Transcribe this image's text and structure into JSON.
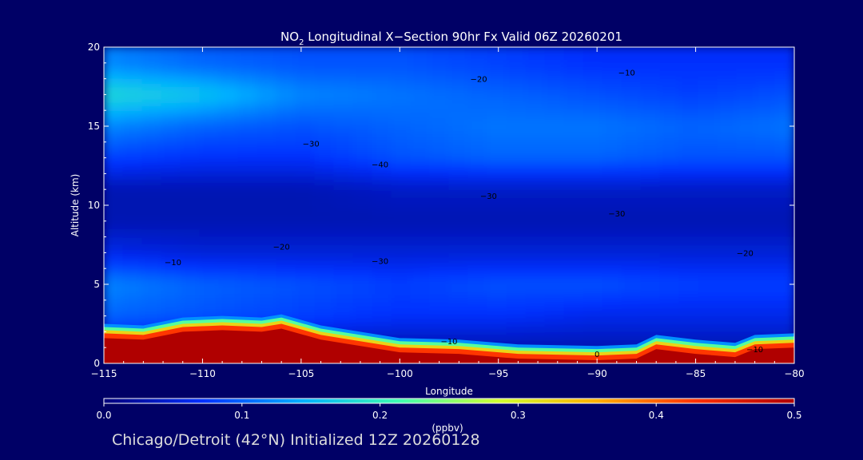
{
  "chart_data": {
    "type": "heatmap",
    "title": {
      "species": "NO",
      "subscript": "2",
      "rest": " Longitudinal X−Section 90hr  Fx Valid 06Z 20260201"
    },
    "xlabel": "Longitude",
    "ylabel": "Altitude (km)",
    "xlim": [
      -115,
      -80
    ],
    "ylim": [
      0,
      20
    ],
    "x_ticks": [
      -115,
      -110,
      -105,
      -100,
      -95,
      -90,
      -85,
      -80
    ],
    "x_tick_labels": [
      "−115",
      "−110",
      "−105",
      "−100",
      "−95",
      "−90",
      "−85",
      "−80"
    ],
    "y_ticks": [
      0,
      5,
      10,
      15,
      20
    ],
    "y_tick_labels": [
      "0",
      "5",
      "10",
      "15",
      "20"
    ],
    "colorbar": {
      "label": "(ppbv)",
      "range": [
        0.0,
        0.5
      ],
      "ticks": [
        0.0,
        0.1,
        0.2,
        0.3,
        0.4,
        0.5
      ],
      "tick_labels": [
        "0.0",
        "0.1",
        "0.2",
        "0.3",
        "0.4",
        "0.5"
      ],
      "colors": [
        "#00007a",
        "#0030ff",
        "#00b0ff",
        "#40ffb0",
        "#d0ff30",
        "#ffb000",
        "#ff3000",
        "#b00000"
      ]
    },
    "background_color": "#000066",
    "field_levels": [
      {
        "lon": -115,
        "values": [
          0.04,
          0.1,
          0.12,
          0.06,
          0.03,
          0.03,
          0.08,
          0.12,
          0.18,
          0.12
        ]
      },
      {
        "lon": -110,
        "values": [
          0.03,
          0.09,
          0.1,
          0.05,
          0.03,
          0.03,
          0.07,
          0.1,
          0.16,
          0.1
        ]
      },
      {
        "lon": -105,
        "values": [
          0.03,
          0.08,
          0.09,
          0.05,
          0.03,
          0.03,
          0.07,
          0.09,
          0.12,
          0.09
        ]
      },
      {
        "lon": -100,
        "values": [
          0.03,
          0.07,
          0.08,
          0.05,
          0.03,
          0.04,
          0.09,
          0.1,
          0.11,
          0.09
        ]
      },
      {
        "lon": -95,
        "values": [
          0.03,
          0.07,
          0.09,
          0.05,
          0.03,
          0.04,
          0.1,
          0.11,
          0.1,
          0.08
        ]
      },
      {
        "lon": -90,
        "values": [
          0.03,
          0.06,
          0.09,
          0.05,
          0.03,
          0.04,
          0.1,
          0.11,
          0.09,
          0.07
        ]
      },
      {
        "lon": -85,
        "values": [
          0.03,
          0.06,
          0.08,
          0.05,
          0.03,
          0.04,
          0.09,
          0.1,
          0.08,
          0.07
        ]
      },
      {
        "lon": -80,
        "values": [
          0.03,
          0.06,
          0.08,
          0.05,
          0.03,
          0.04,
          0.09,
          0.11,
          0.09,
          0.07
        ]
      }
    ],
    "surface_layer": {
      "max_ppbv": 0.5,
      "terrain_top_km": [
        {
          "lon": -115,
          "km": 1.6
        },
        {
          "lon": -113,
          "km": 1.5
        },
        {
          "lon": -111,
          "km": 2.0
        },
        {
          "lon": -109,
          "km": 2.1
        },
        {
          "lon": -107,
          "km": 2.0
        },
        {
          "lon": -106,
          "km": 2.2
        },
        {
          "lon": -104,
          "km": 1.5
        },
        {
          "lon": -100,
          "km": 0.7
        },
        {
          "lon": -97,
          "km": 0.6
        },
        {
          "lon": -94,
          "km": 0.3
        },
        {
          "lon": -90,
          "km": 0.2
        },
        {
          "lon": -88,
          "km": 0.3
        },
        {
          "lon": -87,
          "km": 0.9
        },
        {
          "lon": -85,
          "km": 0.6
        },
        {
          "lon": -83,
          "km": 0.4
        },
        {
          "lon": -82,
          "km": 0.9
        },
        {
          "lon": -80,
          "km": 1.0
        }
      ]
    },
    "contour_labels": [
      {
        "text": "−20",
        "lon": -96.0,
        "km": 17.8
      },
      {
        "text": "−10",
        "lon": -88.5,
        "km": 18.2
      },
      {
        "text": "−30",
        "lon": -104.5,
        "km": 13.7
      },
      {
        "text": "−40",
        "lon": -101.0,
        "km": 12.4
      },
      {
        "text": "−30",
        "lon": -95.5,
        "km": 10.4
      },
      {
        "text": "−30",
        "lon": -89.0,
        "km": 9.3
      },
      {
        "text": "−20",
        "lon": -106.0,
        "km": 7.2
      },
      {
        "text": "−30",
        "lon": -101.0,
        "km": 6.3
      },
      {
        "text": "−10",
        "lon": -111.5,
        "km": 6.2
      },
      {
        "text": "−20",
        "lon": -82.5,
        "km": 6.8
      },
      {
        "text": "−10",
        "lon": -97.5,
        "km": 1.2
      },
      {
        "text": "−10",
        "lon": -82.0,
        "km": 0.7
      },
      {
        "text": "0",
        "lon": -90.0,
        "km": 0.4
      }
    ]
  },
  "footer": "Chicago/Detroit (42°N) Initialized 12Z 20260128"
}
